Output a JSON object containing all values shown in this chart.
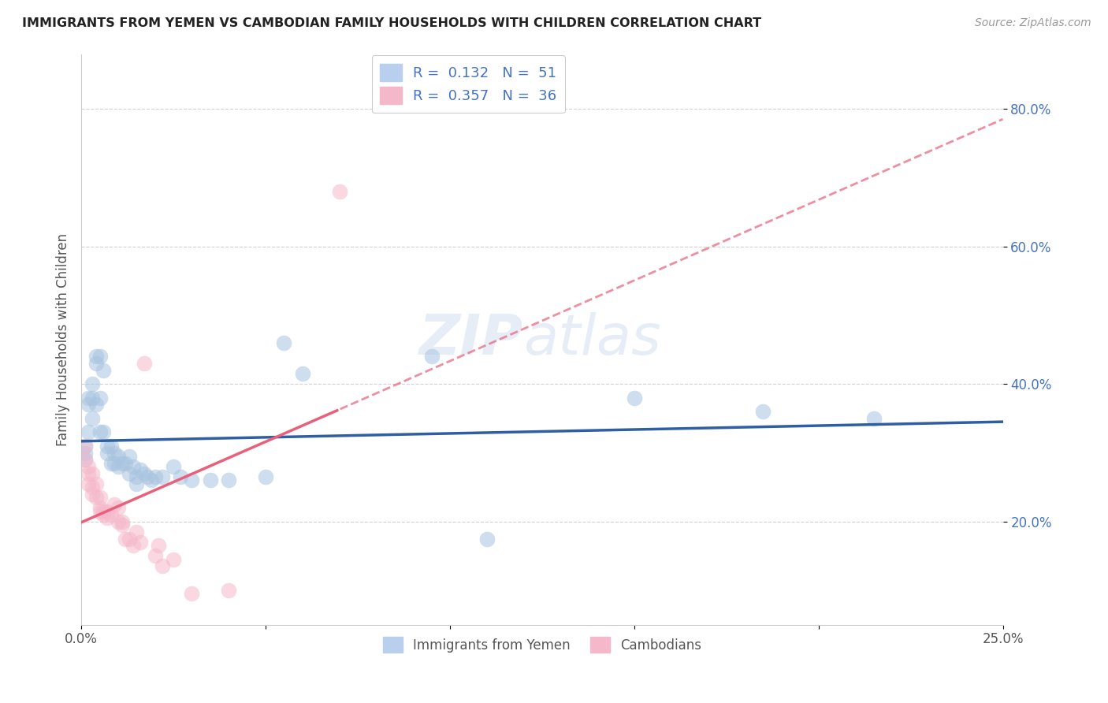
{
  "title": "IMMIGRANTS FROM YEMEN VS CAMBODIAN FAMILY HOUSEHOLDS WITH CHILDREN CORRELATION CHART",
  "source": "Source: ZipAtlas.com",
  "ylabel": "Family Households with Children",
  "xlim": [
    0.0,
    0.25
  ],
  "ylim": [
    0.05,
    0.88
  ],
  "watermark": "ZIPatlas",
  "blue_color": "#a8c4e0",
  "pink_color": "#f5b8cb",
  "blue_line_color": "#2e5fa3",
  "pink_line_color": "#e8607a",
  "blue_scatter": [
    [
      0.001,
      0.31
    ],
    [
      0.001,
      0.3
    ],
    [
      0.002,
      0.33
    ],
    [
      0.001,
      0.29
    ],
    [
      0.002,
      0.38
    ],
    [
      0.002,
      0.37
    ],
    [
      0.003,
      0.4
    ],
    [
      0.003,
      0.38
    ],
    [
      0.003,
      0.35
    ],
    [
      0.004,
      0.44
    ],
    [
      0.004,
      0.43
    ],
    [
      0.004,
      0.37
    ],
    [
      0.005,
      0.44
    ],
    [
      0.005,
      0.38
    ],
    [
      0.005,
      0.33
    ],
    [
      0.006,
      0.42
    ],
    [
      0.006,
      0.33
    ],
    [
      0.007,
      0.31
    ],
    [
      0.007,
      0.3
    ],
    [
      0.008,
      0.31
    ],
    [
      0.008,
      0.285
    ],
    [
      0.009,
      0.3
    ],
    [
      0.009,
      0.285
    ],
    [
      0.01,
      0.295
    ],
    [
      0.01,
      0.28
    ],
    [
      0.011,
      0.285
    ],
    [
      0.012,
      0.285
    ],
    [
      0.013,
      0.295
    ],
    [
      0.013,
      0.27
    ],
    [
      0.014,
      0.28
    ],
    [
      0.015,
      0.265
    ],
    [
      0.015,
      0.255
    ],
    [
      0.016,
      0.275
    ],
    [
      0.017,
      0.27
    ],
    [
      0.018,
      0.265
    ],
    [
      0.019,
      0.26
    ],
    [
      0.02,
      0.265
    ],
    [
      0.022,
      0.265
    ],
    [
      0.025,
      0.28
    ],
    [
      0.027,
      0.265
    ],
    [
      0.03,
      0.26
    ],
    [
      0.035,
      0.26
    ],
    [
      0.04,
      0.26
    ],
    [
      0.05,
      0.265
    ],
    [
      0.055,
      0.46
    ],
    [
      0.06,
      0.415
    ],
    [
      0.095,
      0.44
    ],
    [
      0.11,
      0.175
    ],
    [
      0.15,
      0.38
    ],
    [
      0.185,
      0.36
    ],
    [
      0.215,
      0.35
    ]
  ],
  "pink_scatter": [
    [
      0.001,
      0.31
    ],
    [
      0.001,
      0.29
    ],
    [
      0.002,
      0.28
    ],
    [
      0.002,
      0.27
    ],
    [
      0.002,
      0.255
    ],
    [
      0.003,
      0.27
    ],
    [
      0.003,
      0.25
    ],
    [
      0.003,
      0.24
    ],
    [
      0.004,
      0.255
    ],
    [
      0.004,
      0.235
    ],
    [
      0.005,
      0.235
    ],
    [
      0.005,
      0.22
    ],
    [
      0.005,
      0.215
    ],
    [
      0.006,
      0.215
    ],
    [
      0.006,
      0.21
    ],
    [
      0.007,
      0.215
    ],
    [
      0.007,
      0.205
    ],
    [
      0.008,
      0.21
    ],
    [
      0.009,
      0.225
    ],
    [
      0.01,
      0.22
    ],
    [
      0.01,
      0.2
    ],
    [
      0.011,
      0.2
    ],
    [
      0.011,
      0.195
    ],
    [
      0.012,
      0.175
    ],
    [
      0.013,
      0.175
    ],
    [
      0.014,
      0.165
    ],
    [
      0.015,
      0.185
    ],
    [
      0.016,
      0.17
    ],
    [
      0.017,
      0.43
    ],
    [
      0.02,
      0.15
    ],
    [
      0.021,
      0.165
    ],
    [
      0.022,
      0.135
    ],
    [
      0.025,
      0.145
    ],
    [
      0.03,
      0.095
    ],
    [
      0.04,
      0.1
    ],
    [
      0.07,
      0.68
    ]
  ],
  "blue_line_params": [
    0.298,
    0.2
  ],
  "pink_line_params": [
    0.195,
    1.2
  ],
  "background_color": "#ffffff"
}
